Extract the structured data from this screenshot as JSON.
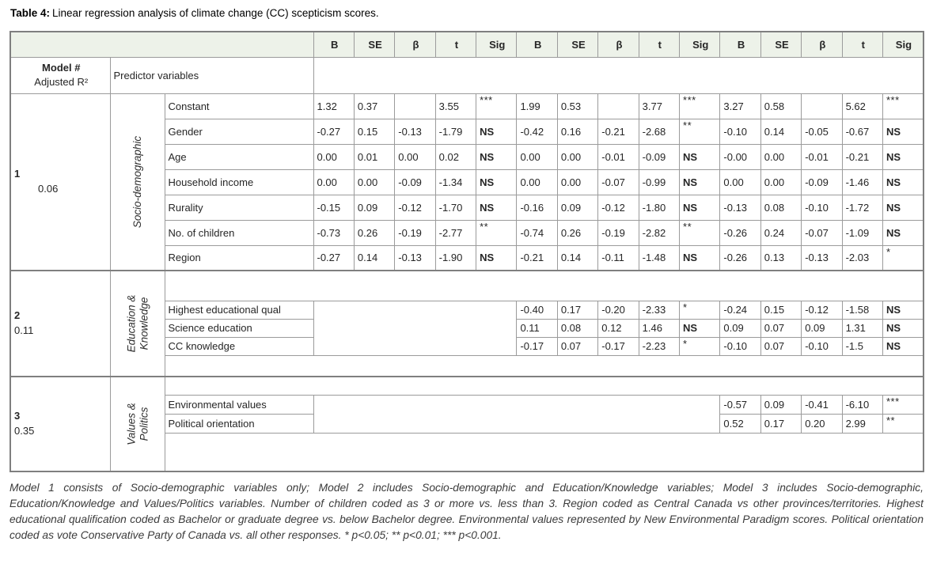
{
  "title": {
    "label": "Table 4:",
    "text": "Linear regression analysis of climate change (CC) scepticism scores."
  },
  "table": {
    "models_count": 3,
    "stat_headers": [
      "B",
      "SE",
      "β",
      "t",
      "Sig"
    ],
    "model_col_header": {
      "line1": "Model #",
      "line2": "Adjusted R²"
    },
    "predictor_col_header": "Predictor variables",
    "sections": [
      {
        "model": "1",
        "r2": "0.06",
        "category_lines": [
          "Socio-demographic"
        ],
        "blank_cols": 0,
        "rows": [
          {
            "predictor": "Constant",
            "values": [
              "1.32",
              "0.37",
              "",
              "3.55",
              "***",
              "1.99",
              "0.53",
              "",
              "3.77",
              "***",
              "3.27",
              "0.58",
              "",
              "5.62",
              "***"
            ]
          },
          {
            "predictor": "Gender",
            "values": [
              "-0.27",
              "0.15",
              "-0.13",
              "-1.79",
              "NS",
              "-0.42",
              "0.16",
              "-0.21",
              "-2.68",
              "**",
              "-0.10",
              "0.14",
              "-0.05",
              "-0.67",
              "NS"
            ]
          },
          {
            "predictor": "Age",
            "values": [
              "0.00",
              "0.01",
              "0.00",
              "0.02",
              "NS",
              "0.00",
              "0.00",
              "-0.01",
              "-0.09",
              "NS",
              "-0.00",
              "0.00",
              "-0.01",
              "-0.21",
              "NS"
            ]
          },
          {
            "predictor": "Household income",
            "values": [
              "0.00",
              "0.00",
              "-0.09",
              "-1.34",
              "NS",
              "0.00",
              "0.00",
              "-0.07",
              "-0.99",
              "NS",
              "0.00",
              "0.00",
              "-0.09",
              "-1.46",
              "NS"
            ]
          },
          {
            "predictor": "Rurality",
            "values": [
              "-0.15",
              "0.09",
              "-0.12",
              "-1.70",
              "NS",
              "-0.16",
              "0.09",
              "-0.12",
              "-1.80",
              "NS",
              "-0.13",
              "0.08",
              "-0.10",
              "-1.72",
              "NS"
            ]
          },
          {
            "predictor": "No. of children",
            "values": [
              "-0.73",
              "0.26",
              "-0.19",
              "-2.77",
              "**",
              "-0.74",
              "0.26",
              "-0.19",
              "-2.82",
              "**",
              "-0.26",
              "0.24",
              "-0.07",
              "-1.09",
              "NS"
            ]
          },
          {
            "predictor": "Region",
            "values": [
              "-0.27",
              "0.14",
              "-0.13",
              "-1.90",
              "NS",
              "-0.21",
              "0.14",
              "-0.11",
              "-1.48",
              "NS",
              "-0.26",
              "0.13",
              "-0.13",
              "-2.03",
              "*"
            ]
          }
        ]
      },
      {
        "model": "2",
        "r2": "0.11",
        "category_lines": [
          "Education &",
          "Knowledge"
        ],
        "blank_cols": 5,
        "rows": [
          {
            "predictor": "Highest educational qual",
            "values": [
              "-0.40",
              "0.17",
              "-0.20",
              "-2.33",
              "*",
              "-0.24",
              "0.15",
              "-0.12",
              "-1.58",
              "NS"
            ]
          },
          {
            "predictor": "Science education",
            "values": [
              "0.11",
              "0.08",
              "0.12",
              "1.46",
              "NS",
              "0.09",
              "0.07",
              "0.09",
              "1.31",
              "NS"
            ]
          },
          {
            "predictor": "CC knowledge",
            "values": [
              "-0.17",
              "0.07",
              "-0.17",
              "-2.23",
              "*",
              "-0.10",
              "0.07",
              "-0.10",
              "-1.5",
              "NS"
            ]
          }
        ]
      },
      {
        "model": "3",
        "r2": "0.35",
        "category_lines": [
          "Values &",
          "Politics"
        ],
        "blank_cols": 10,
        "rows": [
          {
            "predictor": "Environmental values",
            "values": [
              "-0.57",
              "0.09",
              "-0.41",
              "-6.10",
              "***"
            ]
          },
          {
            "predictor": "Political orientation",
            "values": [
              "0.52",
              "0.17",
              "0.20",
              "2.99",
              "**"
            ]
          }
        ]
      }
    ]
  },
  "footnote": "Model 1 consists of Socio-demographic variables only; Model 2 includes Socio-demographic and Education/Knowledge variables; Model 3 includes Socio-demographic, Education/Knowledge and Values/Politics variables. Number of children coded as 3 or more vs. less than 3. Region coded as Central Canada vs other provinces/territories. Highest educational qualification coded as Bachelor or graduate degree vs. below Bachelor degree. Environmental values represented by New Environmental Paradigm scores. Political orientation coded as vote Conservative Party of Canada vs. all other responses. * p<0.05; ** p<0.01; *** p<0.001."
}
